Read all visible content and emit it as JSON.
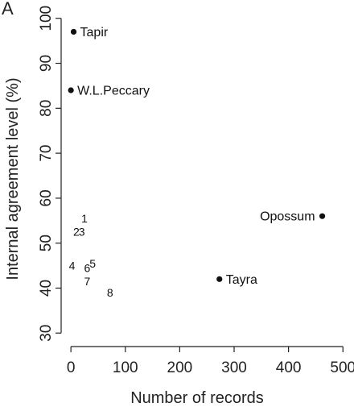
{
  "chart_data": {
    "type": "scatter",
    "panel_label": "A",
    "xlabel": "Number of records",
    "ylabel": "Internal agreement level (%)",
    "xlim": [
      -15,
      510
    ],
    "ylim": [
      27,
      103
    ],
    "xticks": [
      0,
      100,
      200,
      300,
      400,
      500
    ],
    "yticks": [
      30,
      40,
      50,
      60,
      70,
      80,
      90,
      100
    ],
    "labeled_points": [
      {
        "label": "Tapir",
        "x": 5,
        "y": 97
      },
      {
        "label": "W.L.Peccary",
        "x": 0,
        "y": 84
      },
      {
        "label": "Opossum",
        "x": 462,
        "y": 56
      },
      {
        "label": "Tayra",
        "x": 273,
        "y": 42
      }
    ],
    "numbered_points": [
      {
        "label": "1",
        "x": 25,
        "y": 55.5
      },
      {
        "label": "2",
        "x": 10,
        "y": 52.5
      },
      {
        "label": "3",
        "x": 20,
        "y": 52.5
      },
      {
        "label": "4",
        "x": 2,
        "y": 45
      },
      {
        "label": "5",
        "x": 40,
        "y": 45.5
      },
      {
        "label": "6",
        "x": 30,
        "y": 44.5
      },
      {
        "label": "7",
        "x": 30,
        "y": 41.5
      },
      {
        "label": "8",
        "x": 72,
        "y": 39
      }
    ]
  }
}
